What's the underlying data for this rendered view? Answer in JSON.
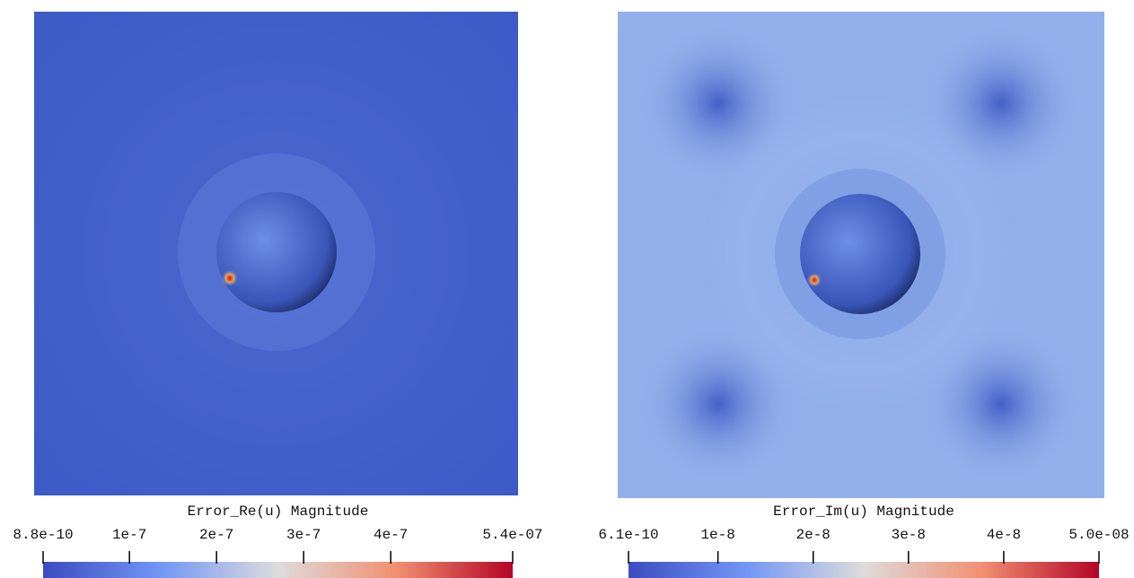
{
  "panels": [
    {
      "title": "Error_Re(u) Magnitude",
      "range": [
        {
          "value": 8.8e-10,
          "label": "8.8e-10"
        },
        {
          "value": 5.4e-07,
          "label": "5.4e-07"
        }
      ],
      "ticks": [
        1e-07,
        2e-07,
        3e-07,
        4e-07
      ]
    },
    {
      "title": "Error_Im(u) Magnitude",
      "range": [
        {
          "value": 6.1e-10,
          "label": "6.1e-10"
        },
        {
          "value": 5e-08,
          "label": "5.0e-08"
        }
      ],
      "ticks": [
        1e-08,
        2e-08,
        3e-08,
        4e-08
      ]
    }
  ]
}
